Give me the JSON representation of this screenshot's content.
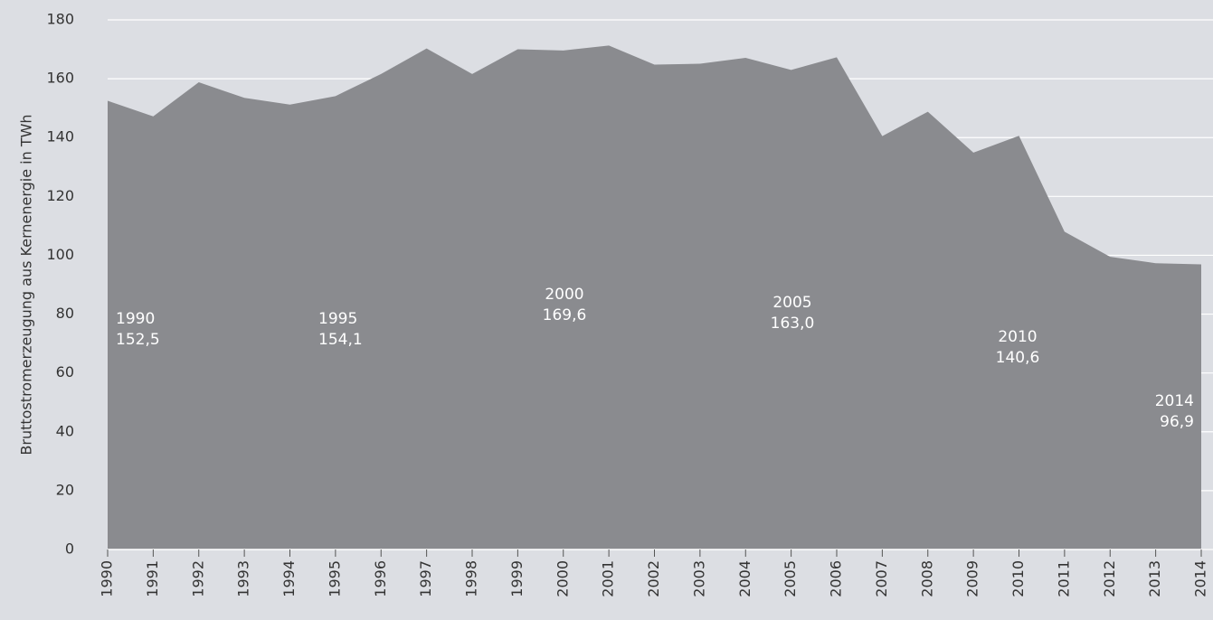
{
  "chart_data": {
    "type": "area",
    "y_label": "Bruttostromerzeugung aus Kernenergie in TWh",
    "categories": [
      "1990",
      "1991",
      "1992",
      "1993",
      "1994",
      "1995",
      "1996",
      "1997",
      "1998",
      "1999",
      "2000",
      "2001",
      "2002",
      "2003",
      "2004",
      "2005",
      "2006",
      "2007",
      "2008",
      "2009",
      "2010",
      "2011",
      "2012",
      "2013",
      "2014"
    ],
    "values": [
      152.5,
      147.2,
      158.8,
      153.5,
      151.2,
      154.1,
      161.6,
      170.3,
      161.6,
      170.0,
      169.6,
      171.3,
      164.8,
      165.1,
      167.1,
      163.0,
      167.3,
      140.5,
      148.8,
      134.9,
      140.6,
      108.0,
      99.5,
      97.3,
      96.9
    ],
    "value_labels": [
      "152,5",
      null,
      null,
      null,
      null,
      "154,1",
      null,
      null,
      null,
      null,
      "169,6",
      null,
      null,
      null,
      null,
      "163,0",
      null,
      null,
      null,
      null,
      "140,6",
      null,
      null,
      null,
      "96,9"
    ],
    "color": "#8a8b8f",
    "ylim": [
      0,
      180
    ],
    "yticks": [
      0,
      20,
      40,
      60,
      80,
      100,
      120,
      140,
      160,
      180
    ],
    "grid": true
  }
}
